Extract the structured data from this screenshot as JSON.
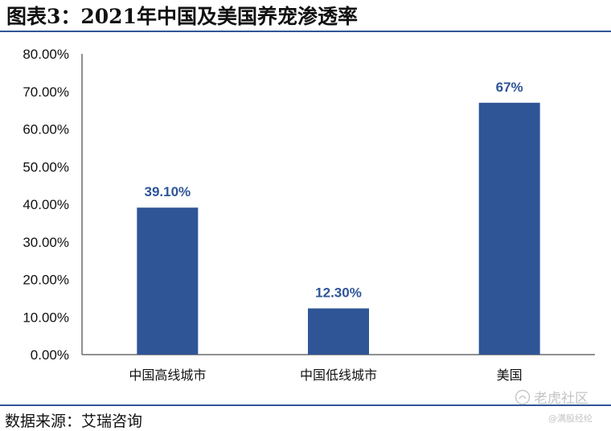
{
  "header": {
    "title": "图表3：2021年中国及美国养宠渗透率"
  },
  "footer": {
    "source": "数据来源：艾瑞咨询"
  },
  "watermark": {
    "brand": "老虎社区",
    "handle": "@满股经纶"
  },
  "chart_data": {
    "type": "bar",
    "title": "",
    "xlabel": "",
    "ylabel": "",
    "categories": [
      "中国高线城市",
      "中国低线城市",
      "美国"
    ],
    "values": [
      39.1,
      12.3,
      67
    ],
    "data_labels": [
      "39.10%",
      "12.30%",
      "67%"
    ],
    "ylim": [
      0,
      80
    ],
    "yticks": [
      0,
      10,
      20,
      30,
      40,
      50,
      60,
      70,
      80
    ],
    "ytick_labels": [
      "0.00%",
      "10.00%",
      "20.00%",
      "30.00%",
      "40.00%",
      "50.00%",
      "60.00%",
      "70.00%",
      "80.00%"
    ],
    "bar_color": "#2f5597",
    "label_color": "#2f5597",
    "grid": false,
    "legend": "none"
  }
}
